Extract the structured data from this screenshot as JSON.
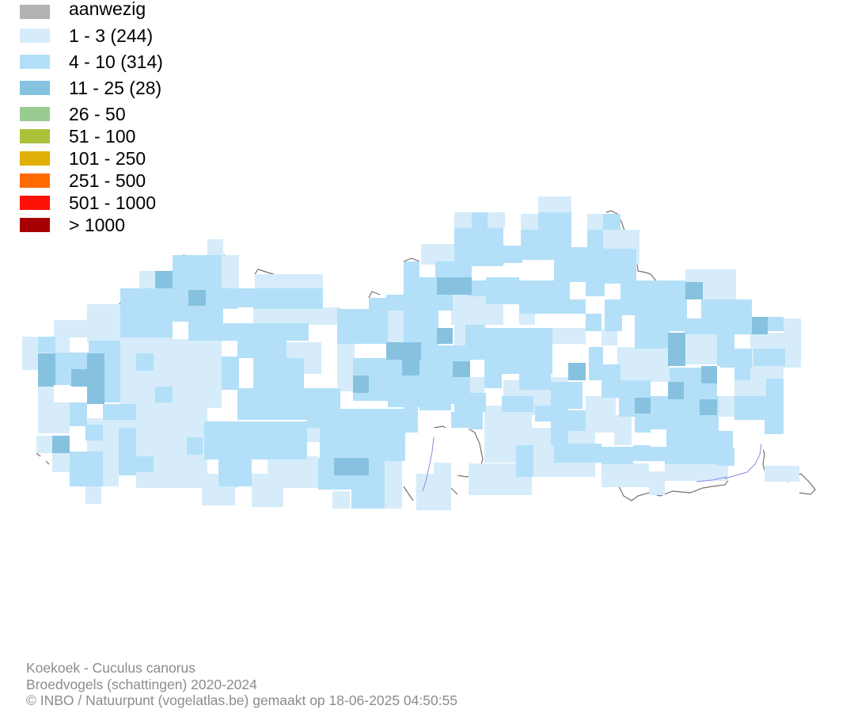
{
  "legend": {
    "items": [
      {
        "label": "aanwezig",
        "color": "#b2b2b2"
      },
      {
        "label": "1 - 3 (244)",
        "color": "#d6ecfa"
      },
      {
        "label": "4 - 10 (314)",
        "color": "#b3e0f8"
      },
      {
        "label": "11 - 25 (28)",
        "color": "#86c2e0"
      },
      {
        "label": "26 - 50",
        "color": "#9acc91"
      },
      {
        "label": "51 - 100",
        "color": "#abc13a"
      },
      {
        "label": "101 - 250",
        "color": "#e2ae08"
      },
      {
        "label": "251 - 500",
        "color": "#ff6900"
      },
      {
        "label": "501 - 1000",
        "color": "#ff1007"
      },
      {
        "label": "> 1000",
        "color": "#a70004"
      }
    ]
  },
  "map": {
    "border_color": "#7a6e6e",
    "river_color": "#8a8ae0"
  },
  "footer": {
    "species": "Koekoek - Cuculus canorus",
    "dataset": "Broedvogels (schattingen) 2020-2024",
    "credit": "© INBO / Natuurpunt (vogelatlas.be) gemaakt op 18-06-2025 04:50:55"
  }
}
